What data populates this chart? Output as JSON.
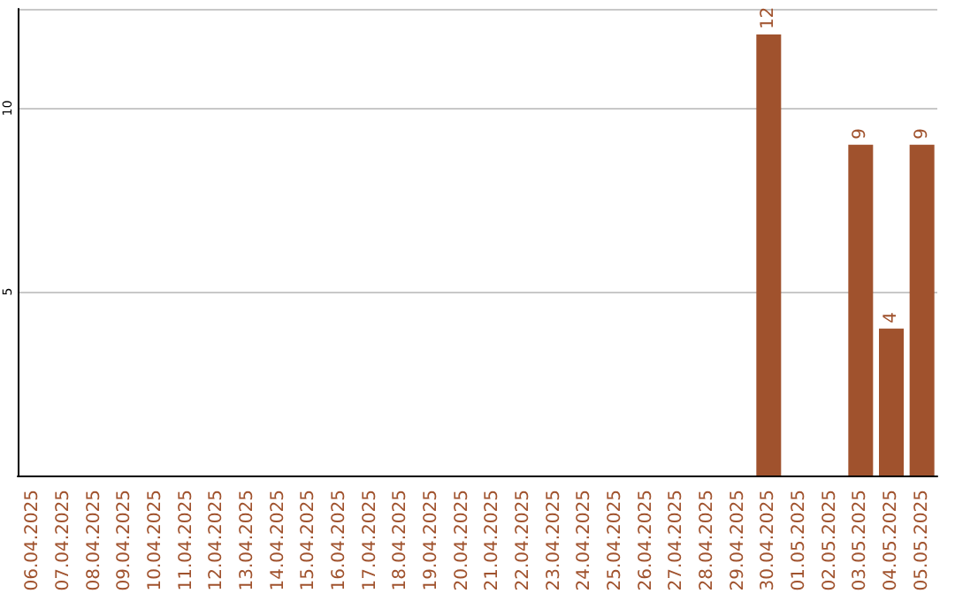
{
  "chart_data": {
    "type": "bar",
    "categories": [
      "06.04.2025",
      "07.04.2025",
      "08.04.2025",
      "09.04.2025",
      "10.04.2025",
      "11.04.2025",
      "12.04.2025",
      "13.04.2025",
      "14.04.2025",
      "15.04.2025",
      "16.04.2025",
      "17.04.2025",
      "18.04.2025",
      "19.04.2025",
      "20.04.2025",
      "21.04.2025",
      "22.04.2025",
      "23.04.2025",
      "24.04.2025",
      "25.04.2025",
      "26.04.2025",
      "27.04.2025",
      "28.04.2025",
      "29.04.2025",
      "30.04.2025",
      "01.05.2025",
      "02.05.2025",
      "03.05.2025",
      "04.05.2025",
      "05.05.2025"
    ],
    "values": [
      0,
      0,
      0,
      0,
      0,
      0,
      0,
      0,
      0,
      0,
      0,
      0,
      0,
      0,
      0,
      0,
      0,
      0,
      0,
      0,
      0,
      0,
      0,
      0,
      12,
      0,
      0,
      9,
      4,
      9
    ],
    "value_labels": [
      null,
      null,
      null,
      null,
      null,
      null,
      null,
      null,
      null,
      null,
      null,
      null,
      null,
      null,
      null,
      null,
      null,
      null,
      null,
      null,
      null,
      null,
      null,
      null,
      "12",
      null,
      null,
      "9",
      "4",
      "9"
    ],
    "color": "#a0522d",
    "ylim": [
      0,
      12.7
    ],
    "yticks": [
      5,
      10
    ],
    "grid": "y"
  }
}
